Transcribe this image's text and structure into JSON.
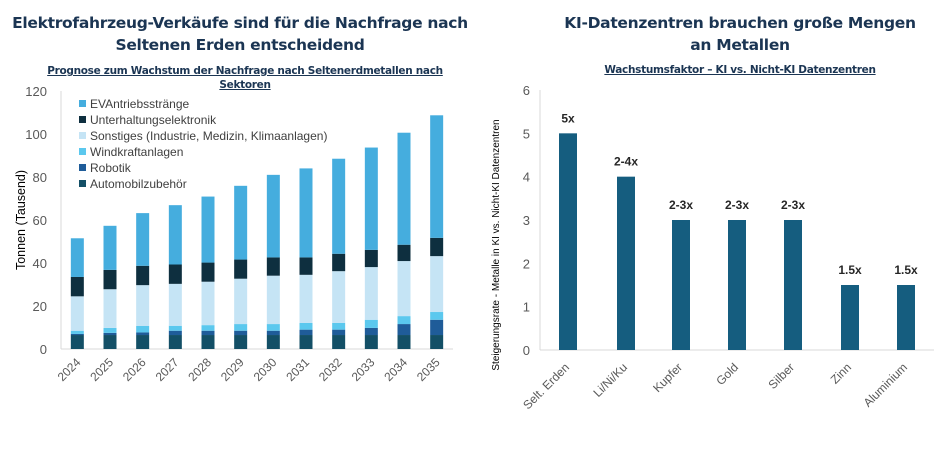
{
  "chart_data": [
    {
      "type": "bar",
      "stacked": true,
      "title": "Elektrofahrzeug-Verkäufe sind für die Nachfrage nach Seltenen Erden entscheidend",
      "subtitle": "Prognose zum Wachstum der Nachfrage nach Seltenerdmetallen nach Sektoren",
      "xlabel": "",
      "ylabel": "Tonnen (Tausend)",
      "ylim": [
        0,
        120
      ],
      "yticks": [
        0,
        20,
        40,
        60,
        80,
        100,
        120
      ],
      "grid": false,
      "legend": "top-left",
      "categories": [
        "2024",
        "2025",
        "2026",
        "2027",
        "2028",
        "2029",
        "2030",
        "2031",
        "2032",
        "2033",
        "2034",
        "2035"
      ],
      "series": [
        {
          "name": "Automobilzubehör",
          "color": "#134f66",
          "values": [
            6.5,
            6.5,
            6.5,
            6.5,
            6.5,
            6.5,
            6.5,
            6.5,
            6.5,
            6.5,
            6.5,
            6.5
          ]
        },
        {
          "name": "Robotik",
          "color": "#1f5c99",
          "values": [
            0.5,
            1.0,
            1.2,
            2.0,
            2.0,
            2.0,
            2.0,
            2.5,
            2.5,
            3.3,
            5.1,
            7.1
          ]
        },
        {
          "name": "Windkraftanlagen",
          "color": "#5bc8ee",
          "values": [
            1.5,
            2.3,
            3.0,
            2.3,
            2.6,
            3.1,
            3.1,
            3.1,
            3.1,
            3.8,
            3.7,
            3.6
          ]
        },
        {
          "name": "Sonstiges (Industrie, Medizin, Klimaanlagen)",
          "color": "#c5e4f5",
          "values": [
            16.0,
            18.0,
            19.0,
            19.5,
            20.2,
            21.1,
            22.5,
            22.4,
            24.1,
            24.5,
            25.6,
            26.0
          ]
        },
        {
          "name": "Unterhaltungselektronik",
          "color": "#0e2f3f",
          "values": [
            9.0,
            9.0,
            9.0,
            9.0,
            8.9,
            8.9,
            8.5,
            8.1,
            8.1,
            8.0,
            7.6,
            8.5
          ]
        },
        {
          "name": "EVAntriebsstränge",
          "color": "#45adde",
          "values": [
            18.0,
            20.5,
            24.5,
            27.6,
            30.7,
            34.3,
            38.4,
            41.4,
            44.2,
            47.6,
            52.1,
            57.0
          ]
        }
      ],
      "legend_order": [
        "EVAntriebsstränge",
        "Unterhaltungselektronik",
        "Sonstiges (Industrie, Medizin, Klimaanlagen)",
        "Windkraftanlagen",
        "Robotik",
        "Automobilzubehör"
      ]
    },
    {
      "type": "bar",
      "title": "KI-Datenzentren brauchen große Mengen an Metallen",
      "subtitle": "Wachstumsfaktor – KI vs. Nicht-KI Datenzentren",
      "xlabel": "",
      "ylabel": "Steigerungsrate - Metalle in KI vs. Nicht-KI Datenzentren",
      "ylim": [
        0,
        6
      ],
      "yticks": [
        0,
        1,
        2,
        3,
        4,
        5,
        6
      ],
      "grid": false,
      "color": "#155d7f",
      "categories": [
        "Selt. Erden",
        "Li/Ni/Ku",
        "Kupfer",
        "Gold",
        "Silber",
        "Zinn",
        "Aluminium"
      ],
      "values": [
        5,
        4,
        3,
        3,
        3,
        1.5,
        1.5
      ],
      "data_labels": [
        "5x",
        "2-4x",
        "2-3x",
        "2-3x",
        "2-3x",
        "1.5x",
        "1.5x"
      ]
    }
  ]
}
